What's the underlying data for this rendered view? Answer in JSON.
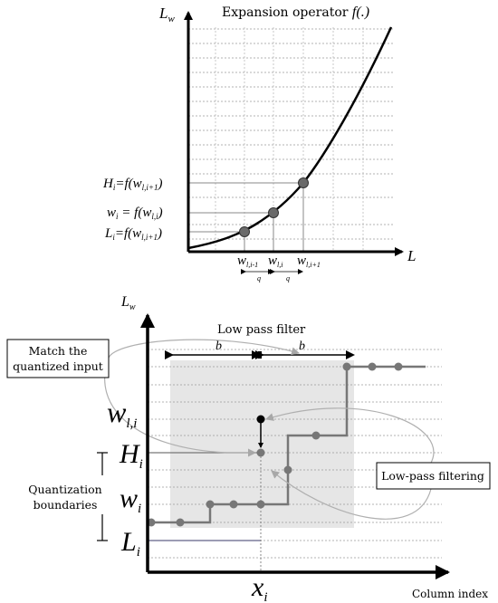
{
  "top_plot": {
    "y_axis_label": "L",
    "y_axis_sub": "w",
    "x_axis_label": "L",
    "title_text": "Expansion operator ",
    "title_func": "f(.)",
    "label_H": "H",
    "label_H_sub": "i",
    "label_H_rhs": "=f(w",
    "label_H_rhs_sub": "l,i+1",
    "label_w": "w",
    "label_w_sub": "i",
    "label_w_rhs": " = f(w",
    "label_w_rhs_sub": "l,i",
    "label_L": "L",
    "label_L_sub": "i",
    "label_L_rhs": "=f(w",
    "label_L_rhs_sub": "l,i+1",
    "tick_w_prev": "w",
    "tick_w_prev_sub": "l,i-1",
    "tick_w_cur": "w",
    "tick_w_cur_sub": "l,i",
    "tick_w_next": "w",
    "tick_w_next_sub": "l,i+1",
    "spacing_q1": "q",
    "spacing_q2": "q",
    "closing_paren": ")"
  },
  "bottom_plot": {
    "y_axis_label": "L",
    "y_axis_sub": "w",
    "x_axis_label": "Column index",
    "filter_title": "Low pass filter",
    "b_left": "b",
    "b_right": "b",
    "label_wl": "w",
    "label_wl_sub": "l,i",
    "label_H": "H",
    "label_H_sub": "i",
    "label_w": "w",
    "label_w_sub": "i",
    "label_L": "L",
    "label_L_sub": "i",
    "label_x": "x",
    "label_x_sub": "i",
    "box_match_line1": "Match the",
    "box_match_line2": "quantized input",
    "box_lowpass": "Low-pass filtering",
    "quant_line1": "Quantization",
    "quant_line2": "boundaries"
  },
  "colors": {
    "accent_gray": "#666666",
    "filter_area": "#e6e6e6"
  }
}
